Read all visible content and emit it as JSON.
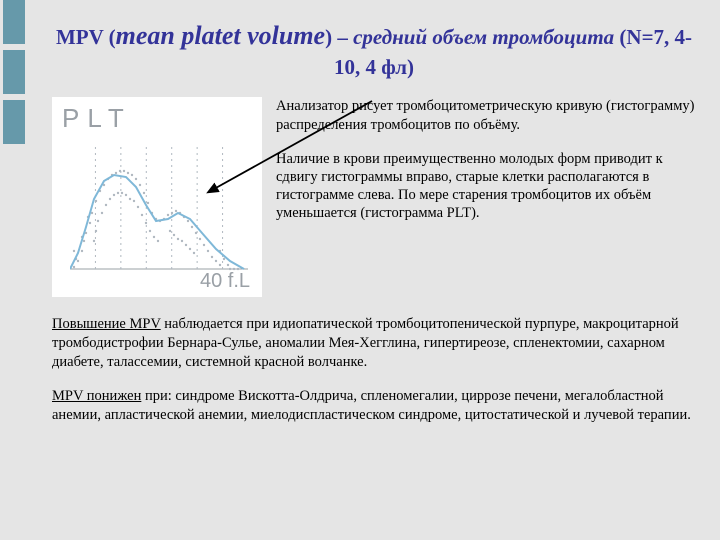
{
  "sidebar": {
    "block_color": "#6699aa",
    "block_count": 3
  },
  "title": {
    "part1": "MPV (",
    "part2_big_italic": "mean platet volume",
    "part3": ") – ",
    "part4_italic": "средний объем тромбоцита",
    "part5": " (N=7, 4-10, 4 фл)"
  },
  "chart": {
    "label": "PLT",
    "x_axis_label": "40 f.L",
    "background": "#ffffff",
    "dot_color": "#b0b8c0",
    "curve_color": "#7fb8d8",
    "curve_width": 2,
    "dotted_vertical_count": 6,
    "curve_points": [
      [
        0,
        128
      ],
      [
        8,
        112
      ],
      [
        16,
        86
      ],
      [
        24,
        58
      ],
      [
        34,
        40
      ],
      [
        44,
        34
      ],
      [
        56,
        36
      ],
      [
        66,
        46
      ],
      [
        76,
        64
      ],
      [
        86,
        80
      ],
      [
        98,
        78
      ],
      [
        108,
        72
      ],
      [
        120,
        78
      ],
      [
        132,
        92
      ],
      [
        146,
        108
      ],
      [
        160,
        120
      ],
      [
        174,
        128
      ]
    ],
    "scatter_points": [
      [
        4,
        126
      ],
      [
        8,
        120
      ],
      [
        12,
        110
      ],
      [
        14,
        100
      ],
      [
        16,
        92
      ],
      [
        20,
        82
      ],
      [
        22,
        72
      ],
      [
        26,
        60
      ],
      [
        30,
        50
      ],
      [
        34,
        44
      ],
      [
        38,
        38
      ],
      [
        42,
        34
      ],
      [
        46,
        32
      ],
      [
        50,
        30
      ],
      [
        54,
        30
      ],
      [
        58,
        32
      ],
      [
        62,
        34
      ],
      [
        66,
        38
      ],
      [
        70,
        44
      ],
      [
        74,
        52
      ],
      [
        78,
        62
      ],
      [
        82,
        72
      ],
      [
        86,
        78
      ],
      [
        90,
        80
      ],
      [
        94,
        78
      ],
      [
        98,
        74
      ],
      [
        102,
        72
      ],
      [
        106,
        70
      ],
      [
        110,
        72
      ],
      [
        114,
        76
      ],
      [
        118,
        80
      ],
      [
        122,
        86
      ],
      [
        126,
        92
      ],
      [
        130,
        98
      ],
      [
        134,
        104
      ],
      [
        138,
        110
      ],
      [
        142,
        116
      ],
      [
        146,
        120
      ],
      [
        150,
        124
      ],
      [
        40,
        58
      ],
      [
        44,
        54
      ],
      [
        48,
        52
      ],
      [
        52,
        52
      ],
      [
        56,
        54
      ],
      [
        60,
        58
      ],
      [
        36,
        64
      ],
      [
        32,
        72
      ],
      [
        28,
        80
      ],
      [
        26,
        90
      ],
      [
        24,
        100
      ],
      [
        64,
        60
      ],
      [
        68,
        66
      ],
      [
        72,
        74
      ],
      [
        76,
        82
      ],
      [
        80,
        90
      ],
      [
        84,
        96
      ],
      [
        88,
        100
      ],
      [
        4,
        110
      ],
      [
        6,
        118
      ],
      [
        12,
        96
      ],
      [
        18,
        76
      ],
      [
        150,
        110
      ],
      [
        154,
        118
      ],
      [
        158,
        124
      ],
      [
        160,
        128
      ],
      [
        164,
        128
      ],
      [
        168,
        128
      ],
      [
        100,
        90
      ],
      [
        104,
        94
      ],
      [
        108,
        98
      ],
      [
        112,
        100
      ],
      [
        116,
        104
      ],
      [
        120,
        108
      ],
      [
        124,
        112
      ]
    ]
  },
  "arrow": {
    "color": "#000000",
    "stroke_width": 1.8
  },
  "paragraphs": {
    "p1": "Анализатор рисует тромбоцитометрическую кривую (гистограмму) распределения тромбоцитов по объёму.",
    "p2": "Наличие в крови преимущественно молодых форм приводит к сдвигу гистограммы вправо, старые клетки располагаются в гистограмме слева. По мере старения тромбоцитов их объём уменьшается (гистограмма PLT).",
    "p3_lead": "Повышение MPV",
    "p3_rest": " наблюдается при идиопатической тромбоцитопенической пурпуре, макроцитарной тромбодистрофии Бернара-Сулье, аномалии Мея-Хегглина, гипертиреозе, спленектомии, сахарном диабете, талассемии, системной красной волчанке.",
    "p4_lead": "MPV понижен",
    "p4_rest": " при: синдроме Вискотта-Олдрича, спленомегалии, циррозе печени, мегалобластной анемии, апластической анемии, миелодиспластическом синдроме, цитостатической и лучевой терапии."
  }
}
